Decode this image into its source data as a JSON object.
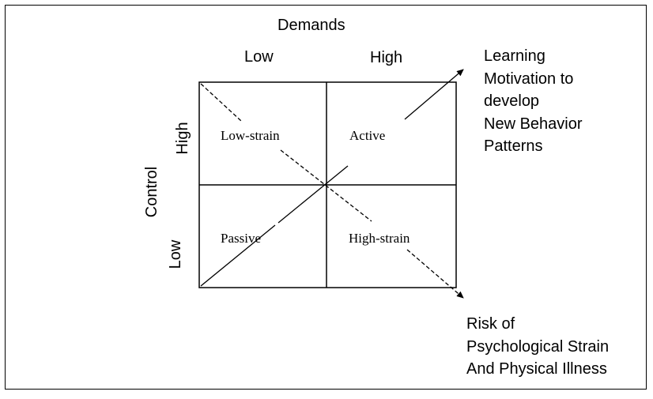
{
  "axis_x": {
    "title": "Demands",
    "low": "Low",
    "high": "High"
  },
  "axis_y": {
    "title": "Control",
    "high": "High",
    "low": "Low"
  },
  "quadrants": {
    "top_left": "Low-strain",
    "top_right": "Active",
    "bottom_left": "Passive",
    "bottom_right": "High-strain"
  },
  "learning_outcome": {
    "lines": [
      "Learning",
      "Motivation to",
      "develop",
      "New Behavior",
      "Patterns"
    ]
  },
  "strain_outcome": {
    "lines": [
      "Risk of",
      "Psychological Strain",
      "And Physical Illness"
    ]
  },
  "colors": {
    "ink": "#000000",
    "background": "#ffffff"
  }
}
